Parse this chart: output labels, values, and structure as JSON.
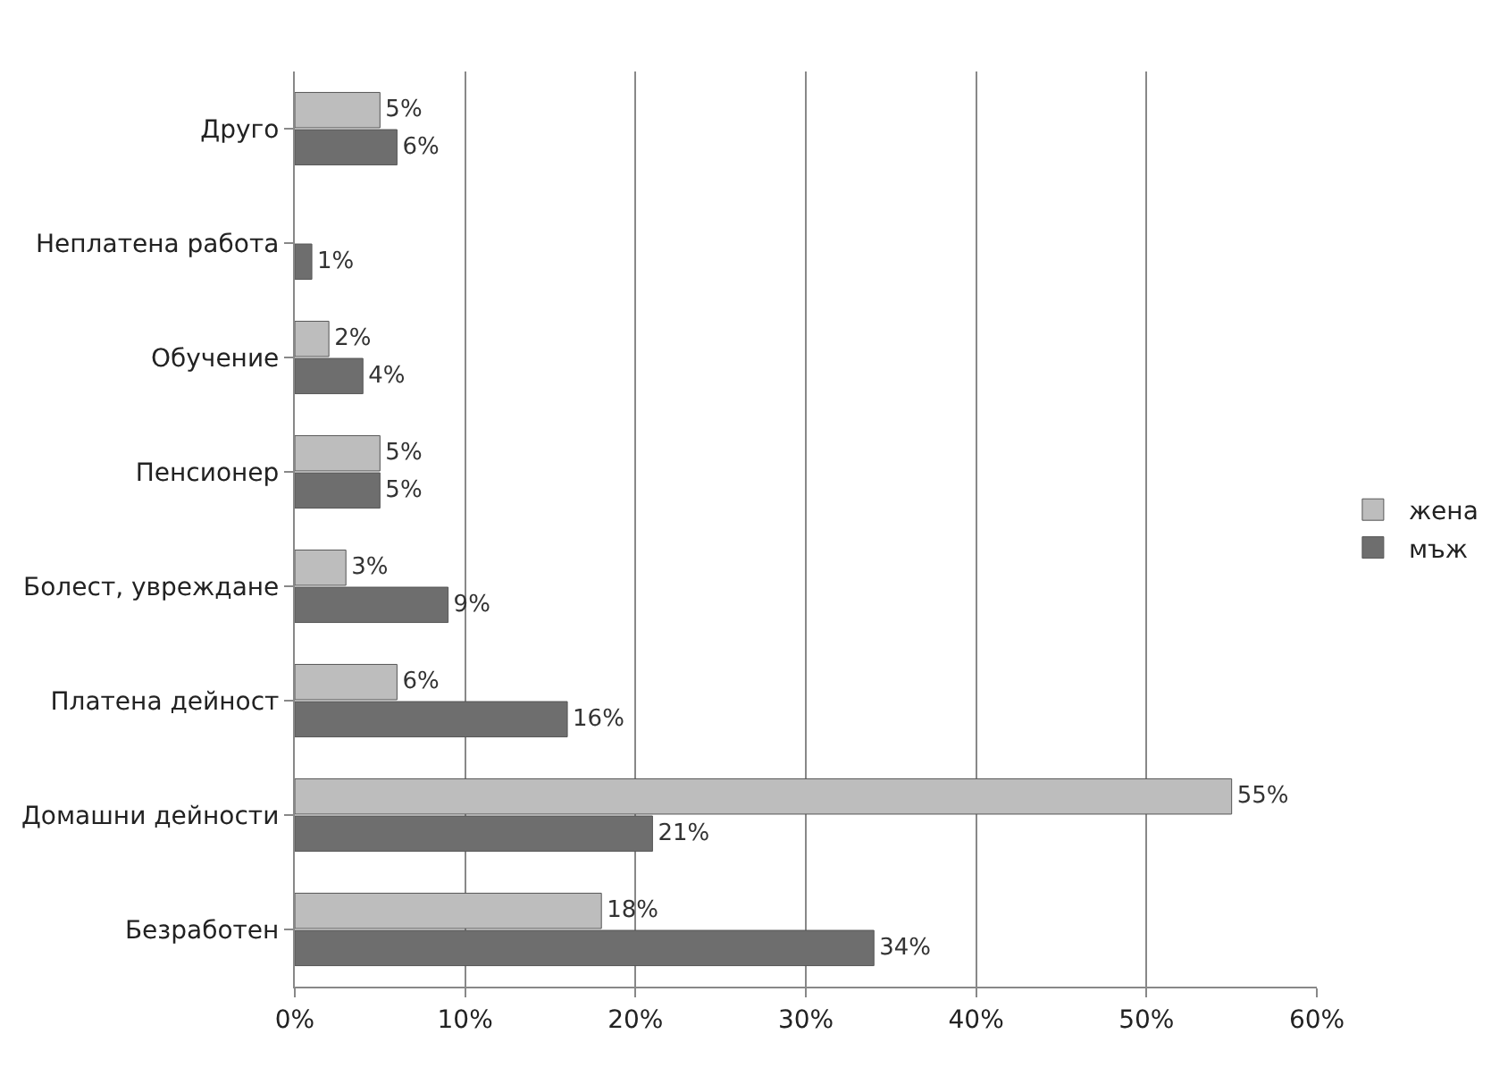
{
  "chart_data": {
    "type": "bar",
    "orientation": "horizontal",
    "categories": [
      "Друго",
      "Неплатена работа",
      "Обучение",
      "Пенсионер",
      "Болест, увреждане",
      "Платена дейност",
      "Домашни дейности",
      "Безработен"
    ],
    "series": [
      {
        "name": "жена",
        "color": "#bdbdbd",
        "values": [
          5,
          null,
          2,
          5,
          3,
          6,
          55,
          18
        ],
        "value_labels": [
          "5%",
          null,
          "2%",
          "5%",
          "3%",
          "6%",
          "55%",
          "18%"
        ]
      },
      {
        "name": "мъж",
        "color": "#6e6e6e",
        "values": [
          6,
          1,
          4,
          5,
          9,
          16,
          21,
          34
        ],
        "value_labels": [
          "6%",
          "1%",
          "4%",
          "5%",
          "9%",
          "16%",
          "21%",
          "34%"
        ]
      }
    ],
    "xlim": [
      0,
      60
    ],
    "xticks": [
      {
        "value": 0,
        "label": "0%"
      },
      {
        "value": 10,
        "label": "10%"
      },
      {
        "value": 20,
        "label": "20%"
      },
      {
        "value": 30,
        "label": "30%"
      },
      {
        "value": 40,
        "label": "40%"
      },
      {
        "value": 50,
        "label": "50%"
      },
      {
        "value": 60,
        "label": "60%"
      }
    ],
    "grid": "x",
    "legend": "right"
  }
}
